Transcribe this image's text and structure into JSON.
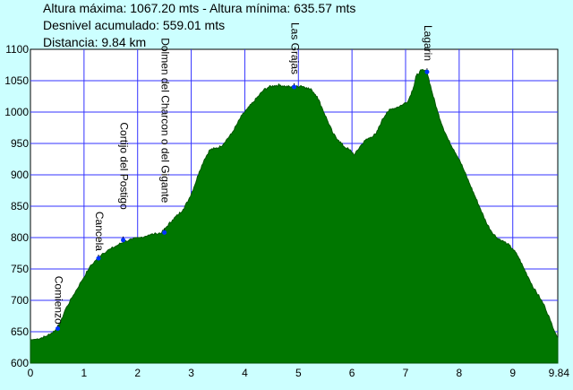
{
  "stats": {
    "max_min": "Altura máxima: 1067.20 mts - Altura mínima: 635.57 mts",
    "desnivel": "Desnivel acumulado: 559.01 mts",
    "distancia": "Distancia: 9.84 km"
  },
  "colors": {
    "background": "#CCFFFF",
    "plot_background": "#FFFFFF",
    "grid": "#3333FF",
    "fill": "#007700",
    "fill_edge": "#005500",
    "marker": "#0033FF"
  },
  "chart_data": {
    "type": "area",
    "title": "",
    "xlabel": "",
    "ylabel": "",
    "xlim": [
      0,
      9.84
    ],
    "ylim": [
      600,
      1100
    ],
    "x_ticks": [
      "0",
      "1",
      "2",
      "3",
      "4",
      "5",
      "6",
      "7",
      "8",
      "9",
      "9.84"
    ],
    "x_tick_values": [
      0,
      1,
      2,
      3,
      4,
      5,
      6,
      7,
      8,
      9,
      9.84
    ],
    "y_ticks": [
      "600",
      "650",
      "700",
      "750",
      "800",
      "850",
      "900",
      "950",
      "1000",
      "1050",
      "1100"
    ],
    "y_tick_values": [
      600,
      650,
      700,
      750,
      800,
      850,
      900,
      950,
      1000,
      1050,
      1100
    ],
    "grid": true,
    "profile": {
      "x": [
        0,
        0.1,
        0.2,
        0.3,
        0.4,
        0.5,
        0.55,
        0.65,
        0.8,
        0.95,
        1.1,
        1.25,
        1.35,
        1.5,
        1.65,
        1.75,
        1.9,
        2.05,
        2.2,
        2.35,
        2.45,
        2.55,
        2.65,
        2.75,
        2.85,
        2.95,
        3.05,
        3.15,
        3.25,
        3.35,
        3.45,
        3.55,
        3.65,
        3.75,
        3.85,
        3.95,
        4.05,
        4.15,
        4.25,
        4.35,
        4.45,
        4.55,
        4.65,
        4.75,
        4.85,
        4.95,
        5.05,
        5.15,
        5.25,
        5.35,
        5.45,
        5.55,
        5.65,
        5.75,
        5.85,
        5.95,
        6.05,
        6.15,
        6.25,
        6.35,
        6.45,
        6.55,
        6.65,
        6.75,
        6.85,
        6.95,
        7.05,
        7.15,
        7.2,
        7.3,
        7.4,
        7.5,
        7.6,
        7.7,
        7.8,
        7.9,
        8.0,
        8.1,
        8.2,
        8.3,
        8.4,
        8.5,
        8.6,
        8.7,
        8.8,
        8.9,
        9.0,
        9.1,
        9.2,
        9.3,
        9.4,
        9.5,
        9.6,
        9.7,
        9.84
      ],
      "y": [
        637,
        638,
        640,
        643,
        648,
        655,
        662,
        685,
        708,
        730,
        752,
        767,
        775,
        782,
        789,
        794,
        797,
        800,
        804,
        806,
        808,
        818,
        828,
        836,
        845,
        860,
        880,
        905,
        925,
        940,
        942,
        945,
        955,
        965,
        980,
        995,
        1005,
        1015,
        1025,
        1035,
        1040,
        1042,
        1043,
        1041,
        1040,
        1040,
        1042,
        1039,
        1035,
        1025,
        1005,
        985,
        965,
        955,
        945,
        940,
        932,
        945,
        955,
        960,
        965,
        985,
        1000,
        1005,
        1008,
        1012,
        1018,
        1040,
        1058,
        1067,
        1064,
        1030,
        1000,
        975,
        955,
        940,
        925,
        905,
        885,
        865,
        845,
        825,
        810,
        800,
        795,
        790,
        782,
        770,
        752,
        735,
        718,
        705,
        690,
        668,
        640
      ]
    },
    "waypoints": [
      {
        "label": "Comienzo",
        "x": 0.51,
        "y": 655
      },
      {
        "label": "Cancela",
        "x": 1.27,
        "y": 767
      },
      {
        "label": "Cortijo del Postigo",
        "x": 1.73,
        "y": 796
      },
      {
        "label": "Dolmen del Charcon o del Gigante",
        "x": 2.5,
        "y": 808
      },
      {
        "label": "Las Grajas",
        "x": 4.92,
        "y": 1040
      },
      {
        "label": "Lagarin",
        "x": 7.4,
        "y": 1064
      }
    ]
  }
}
